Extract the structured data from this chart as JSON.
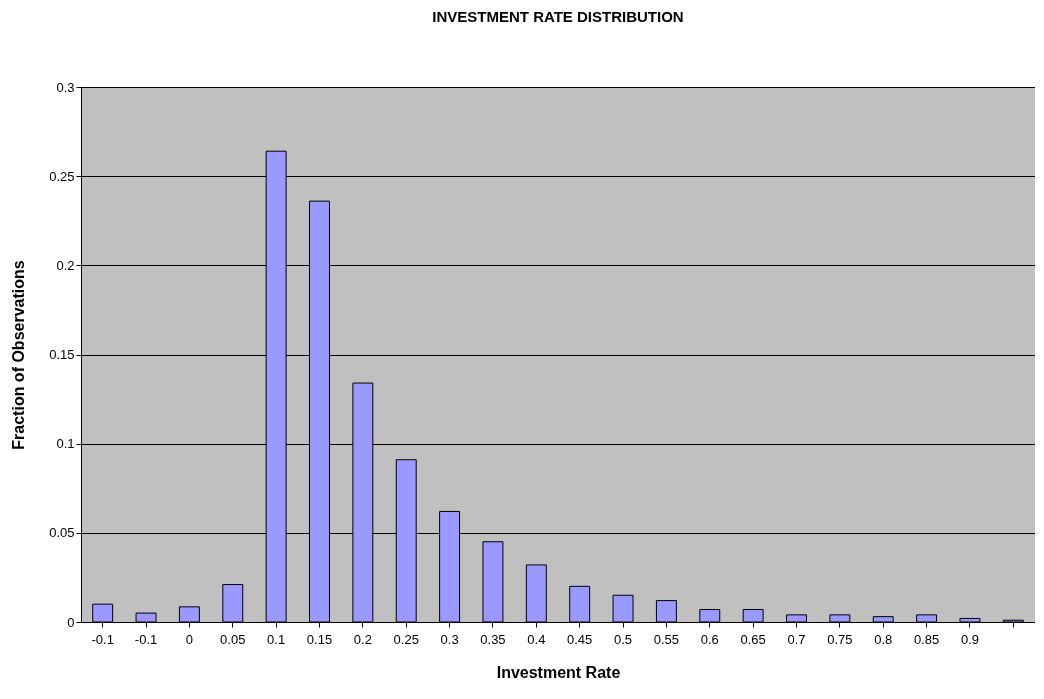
{
  "chart_data": {
    "type": "bar",
    "title": "INVESTMENT RATE DISTRIBUTION",
    "xlabel": "Investment Rate",
    "ylabel": "Fraction of Observations",
    "categories": [
      "-0.1",
      "-0.1",
      "0",
      "0.05",
      "0.1",
      "0.15",
      "0.2",
      "0.25",
      "0.3",
      "0.35",
      "0.4",
      "0.45",
      "0.5",
      "0.55",
      "0.6",
      "0.65",
      "0.7",
      "0.75",
      "0.8",
      "0.85",
      "0.9",
      null
    ],
    "values": [
      0.01,
      0.005,
      0.0085,
      0.021,
      0.264,
      0.236,
      0.134,
      0.091,
      0.062,
      0.045,
      0.032,
      0.02,
      0.015,
      0.012,
      0.007,
      0.007,
      0.004,
      0.004,
      0.003,
      0.004,
      0.002,
      0.001
    ],
    "color": "#9999ff",
    "ylim": [
      0,
      0.3
    ],
    "yticks": [
      0,
      0.05,
      0.1,
      0.15,
      0.2,
      0.25,
      0.3
    ],
    "grid": "y"
  }
}
